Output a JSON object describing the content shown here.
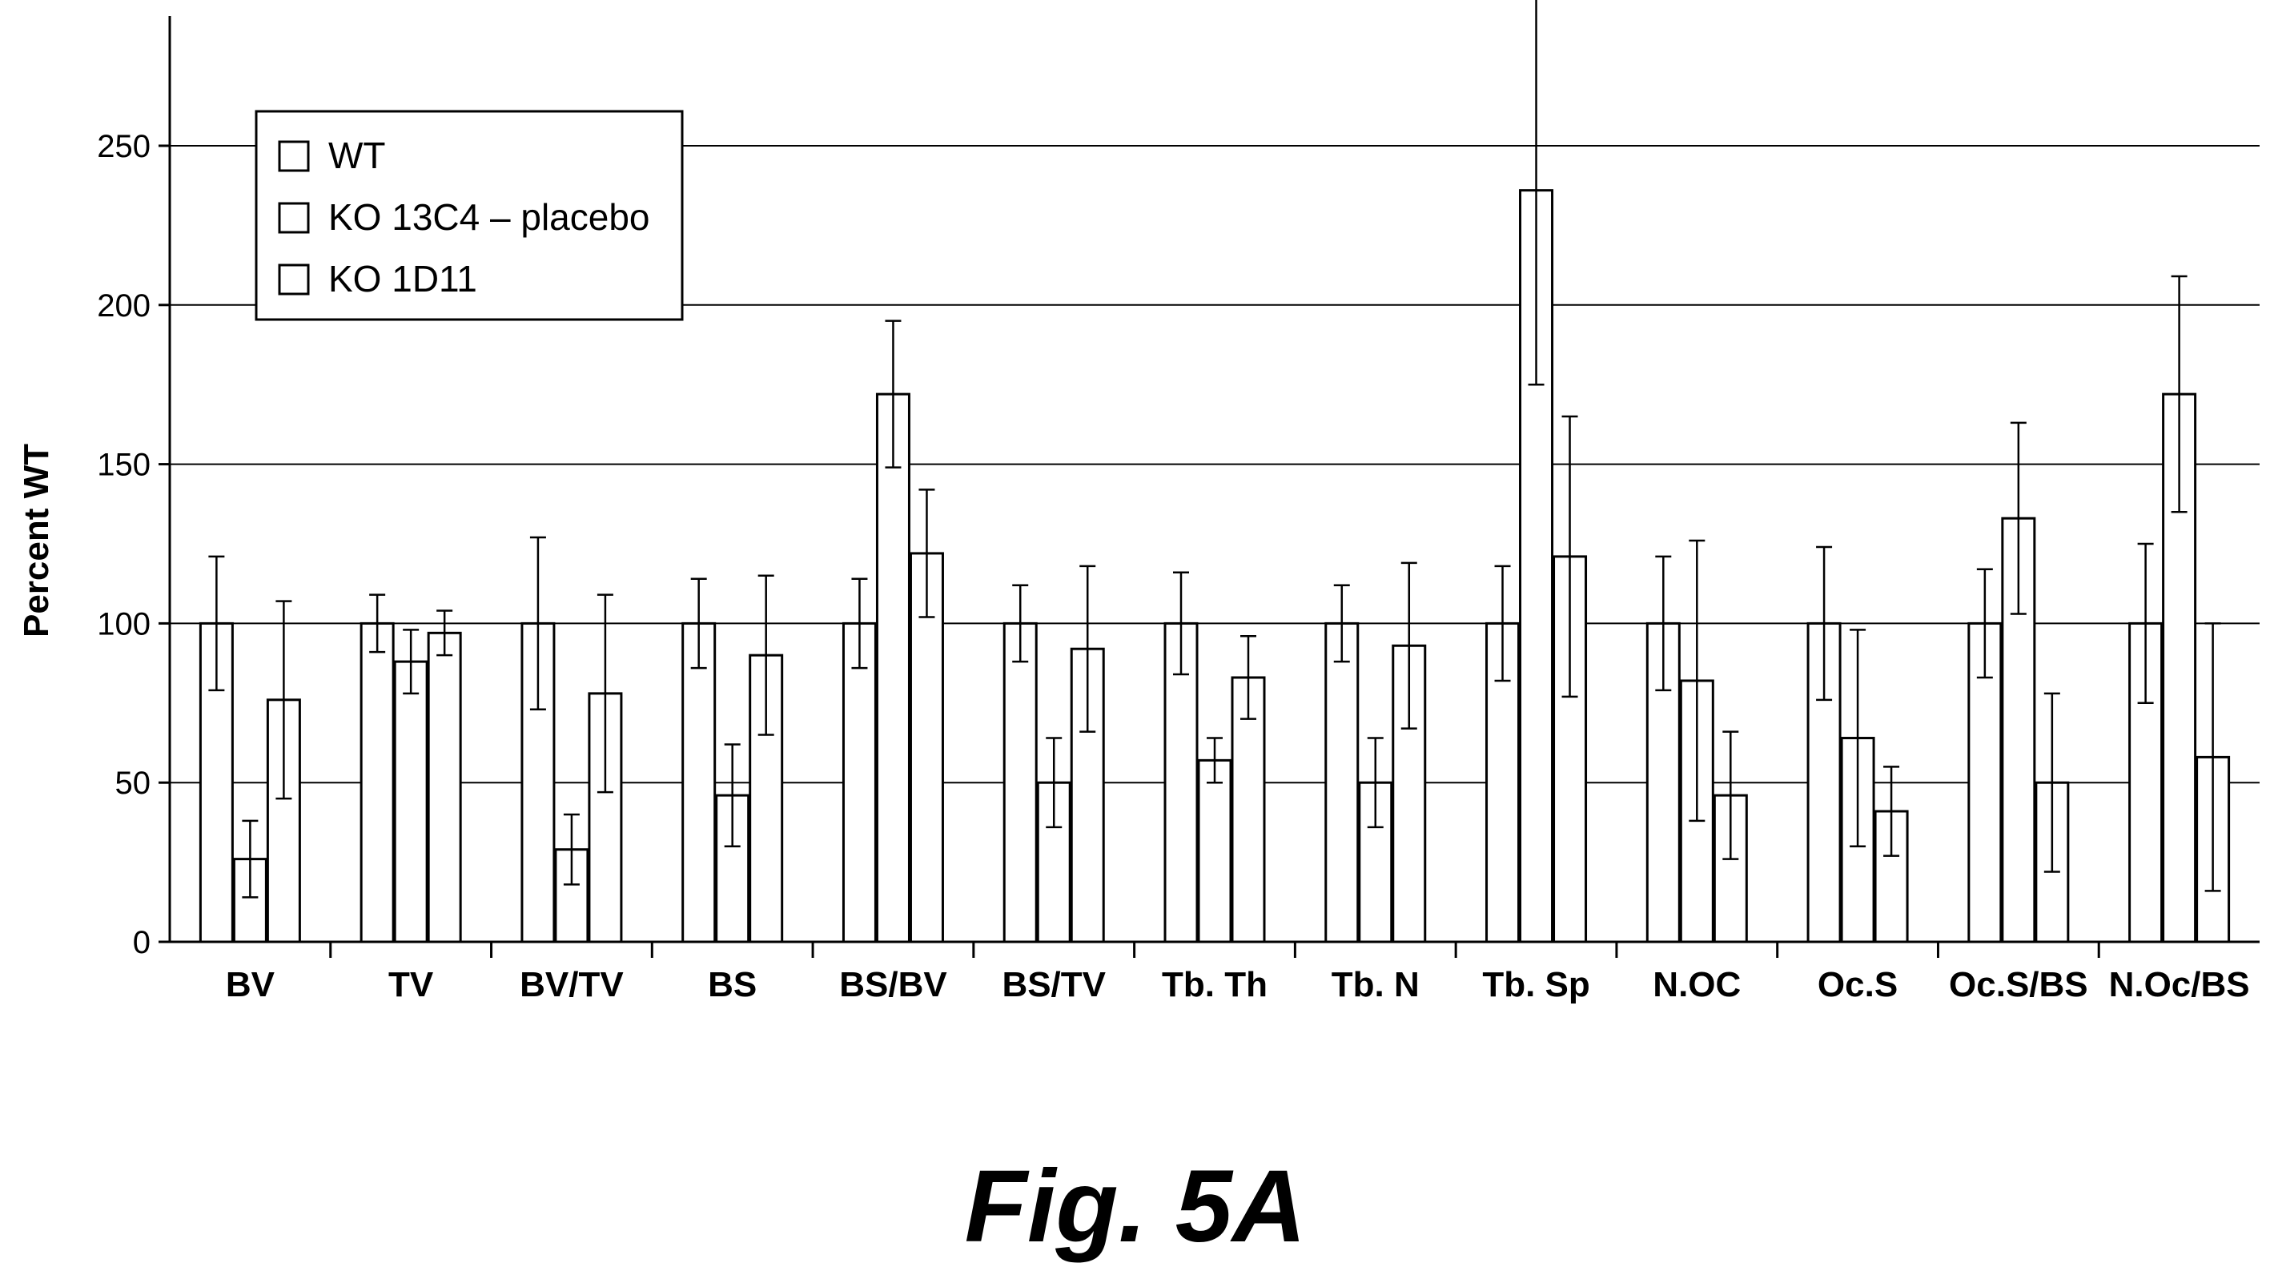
{
  "chart_data": {
    "type": "bar",
    "ylabel": "Percent WT",
    "xlabel": "",
    "ylim": [
      0,
      250
    ],
    "yticks": [
      0,
      50,
      100,
      150,
      200,
      250
    ],
    "grid": true,
    "legend_position": "top-left",
    "categories": [
      "BV",
      "TV",
      "BV/TV",
      "BS",
      "BS/BV",
      "BS/TV",
      "Tb. Th",
      "Tb. N",
      "Tb. Sp",
      "N.OC",
      "Oc.S",
      "Oc.S/BS",
      "N.Oc/BS"
    ],
    "series": [
      {
        "name": "WT",
        "values": [
          100,
          100,
          100,
          100,
          100,
          100,
          100,
          100,
          100,
          100,
          100,
          100,
          100
        ],
        "errors": [
          21,
          9,
          27,
          14,
          14,
          12,
          16,
          12,
          18,
          21,
          24,
          17,
          25
        ]
      },
      {
        "name": "KO 13C4 – placebo",
        "values": [
          26,
          88,
          29,
          46,
          172,
          50,
          57,
          50,
          236,
          82,
          64,
          133,
          172
        ],
        "errors": [
          12,
          10,
          11,
          16,
          23,
          14,
          7,
          14,
          61,
          44,
          34,
          30,
          37
        ]
      },
      {
        "name": "KO 1D11",
        "values": [
          76,
          97,
          78,
          90,
          122,
          92,
          83,
          93,
          121,
          46,
          41,
          50,
          58
        ],
        "errors": [
          31,
          7,
          31,
          25,
          20,
          26,
          13,
          26,
          44,
          20,
          14,
          28,
          42
        ]
      }
    ]
  },
  "caption": "Fig. 5A"
}
